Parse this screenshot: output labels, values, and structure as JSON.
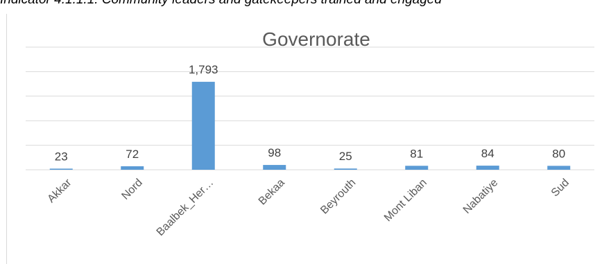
{
  "caption": "Indicator 4.1.1.1: Community leaders and gatekeepers trained and engaged",
  "chart_data": {
    "type": "bar",
    "title": "Governorate",
    "categories": [
      "Akkar",
      "Nord",
      "Baalbek_Her…",
      "Bekaa",
      "Beyrouth",
      "Mont Liban",
      "Nabatiye",
      "Sud"
    ],
    "values": [
      23,
      72,
      1793,
      98,
      25,
      81,
      84,
      80
    ],
    "value_labels": [
      "23",
      "72",
      "1,793",
      "98",
      "25",
      "81",
      "84",
      "80"
    ],
    "ylim": [
      0,
      2500
    ],
    "grid": true,
    "legend": "none",
    "xlabel": "",
    "ylabel": "",
    "bar_color": "#5b9bd5",
    "grid_color": "#d9d9d9"
  }
}
